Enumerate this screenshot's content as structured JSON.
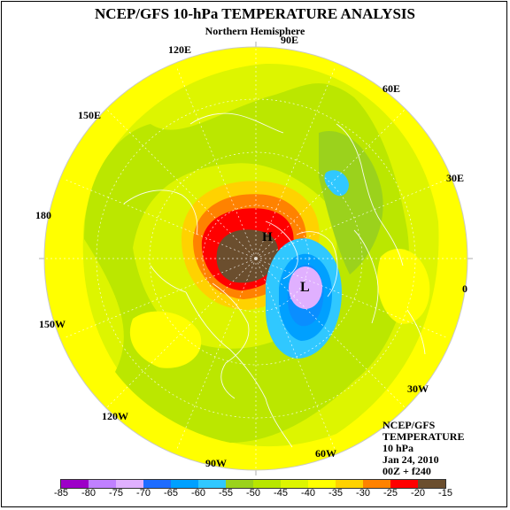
{
  "title": "NCEP/GFS 10-hPa TEMPERATURE ANALYSIS",
  "subtitle": "Northern Hemisphere",
  "lon_labels": {
    "e90": "90E",
    "e120": "120E",
    "e60": "60E",
    "e150": "150E",
    "e30": "30E",
    "l180": "180",
    "l0": "0",
    "w150": "150W",
    "w30": "30W",
    "w120": "120W",
    "w90": "90W",
    "w60": "60W"
  },
  "center_labels": {
    "high": "H",
    "low": "L"
  },
  "info_box": {
    "line1": "NCEP/GFS",
    "line2": "TEMPERATURE",
    "line3": "10 hPa",
    "line4": "Jan 24, 2010",
    "line5": "00Z + f240"
  },
  "colorbar": {
    "ticks": [
      "-85",
      "-80",
      "-75",
      "-70",
      "-65",
      "-60",
      "-55",
      "-50",
      "-45",
      "-40",
      "-35",
      "-30",
      "-25",
      "-20",
      "-15"
    ],
    "colors": [
      "#9d00c8",
      "#c080ff",
      "#e0b0ff",
      "#1e6cff",
      "#00a0ff",
      "#30c8ff",
      "#9bd21c",
      "#b8e600",
      "#ddf500",
      "#ffff00",
      "#ffd200",
      "#ff8200",
      "#ff0000",
      "#6b4e2e"
    ]
  },
  "colors": {
    "background_ring": "#ddf500",
    "outer_band": "#ffff00"
  }
}
